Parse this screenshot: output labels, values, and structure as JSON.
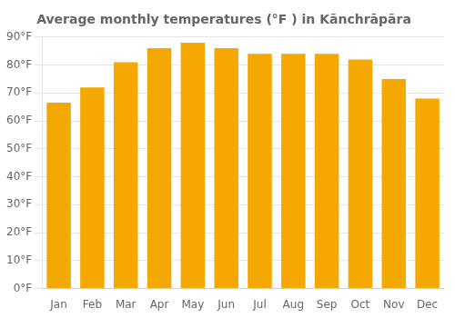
{
  "chart_data": {
    "type": "bar",
    "title": "Average monthly temperatures (°F ) in Kānchrāpāra",
    "categories": [
      "Jan",
      "Feb",
      "Mar",
      "Apr",
      "May",
      "Jun",
      "Jul",
      "Aug",
      "Sep",
      "Oct",
      "Nov",
      "Dec"
    ],
    "values": [
      66.5,
      72.0,
      81.0,
      86.0,
      88.0,
      86.0,
      84.0,
      84.0,
      84.0,
      82.0,
      75.0,
      68.0
    ],
    "color": "#F5A800",
    "ylim": [
      0,
      90
    ],
    "yticks": [
      {
        "value": 0,
        "label": "0°F"
      },
      {
        "value": 10,
        "label": "10°F"
      },
      {
        "value": 20,
        "label": "20°F"
      },
      {
        "value": 30,
        "label": "30°F"
      },
      {
        "value": 40,
        "label": "40°F"
      },
      {
        "value": 50,
        "label": "50°F"
      },
      {
        "value": 60,
        "label": "60°F"
      },
      {
        "value": 70,
        "label": "70°F"
      },
      {
        "value": 80,
        "label": "80°F"
      },
      {
        "value": 90,
        "label": "90°F"
      }
    ],
    "grid": true
  }
}
